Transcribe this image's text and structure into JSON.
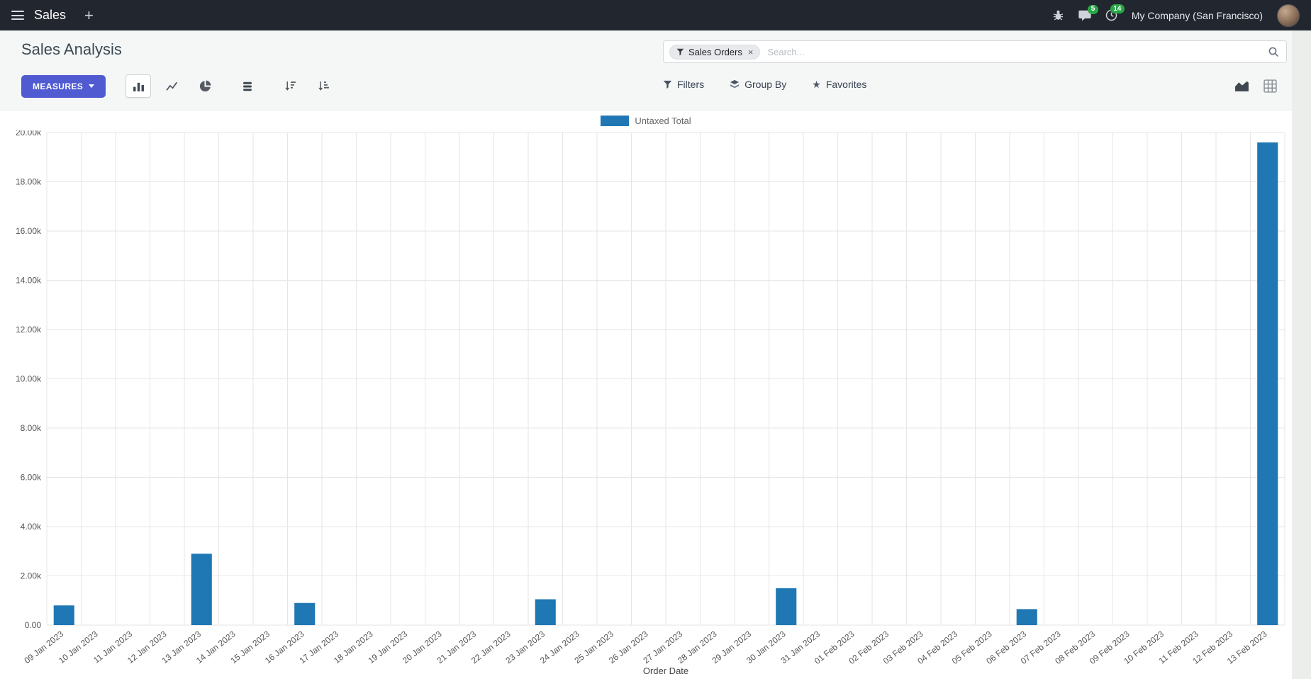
{
  "colors": {
    "navbar_bg": "#22262e",
    "accent": "#505bd2",
    "bar": "#1f77b4",
    "badge_green": "#28a745",
    "grid": "#e6e6e6",
    "tick_text": "#555555"
  },
  "navbar": {
    "app_name": "Sales",
    "plus_label": "+",
    "messages_badge": "5",
    "activities_badge": "14",
    "company": "My Company (San Francisco)"
  },
  "control_panel": {
    "title": "Sales Analysis",
    "search": {
      "facet": "Sales Orders",
      "facet_remove": "×",
      "placeholder": "Search..."
    },
    "measures_label": "MEASURES",
    "filters_label": "Filters",
    "group_by_label": "Group By",
    "favorites_label": "Favorites"
  },
  "chart_data": {
    "type": "bar",
    "title": "",
    "xlabel": "Order Date",
    "ylabel": "",
    "legend": [
      "Untaxed Total"
    ],
    "legend_position": "top",
    "grid": true,
    "ylim": [
      0,
      20000
    ],
    "y_ticks": [
      "0.00",
      "2.00k",
      "4.00k",
      "6.00k",
      "8.00k",
      "10.00k",
      "12.00k",
      "14.00k",
      "16.00k",
      "18.00k",
      "20.00k"
    ],
    "categories": [
      "09 Jan 2023",
      "10 Jan 2023",
      "11 Jan 2023",
      "12 Jan 2023",
      "13 Jan 2023",
      "14 Jan 2023",
      "15 Jan 2023",
      "16 Jan 2023",
      "17 Jan 2023",
      "18 Jan 2023",
      "19 Jan 2023",
      "20 Jan 2023",
      "21 Jan 2023",
      "22 Jan 2023",
      "23 Jan 2023",
      "24 Jan 2023",
      "25 Jan 2023",
      "26 Jan 2023",
      "27 Jan 2023",
      "28 Jan 2023",
      "29 Jan 2023",
      "30 Jan 2023",
      "31 Jan 2023",
      "01 Feb 2023",
      "02 Feb 2023",
      "03 Feb 2023",
      "04 Feb 2023",
      "05 Feb 2023",
      "06 Feb 2023",
      "07 Feb 2023",
      "08 Feb 2023",
      "09 Feb 2023",
      "10 Feb 2023",
      "11 Feb 2023",
      "12 Feb 2023",
      "13 Feb 2023"
    ],
    "series": [
      {
        "name": "Untaxed Total",
        "values": [
          800,
          0,
          0,
          0,
          2900,
          0,
          0,
          900,
          0,
          0,
          0,
          0,
          0,
          0,
          1050,
          0,
          0,
          0,
          0,
          0,
          0,
          1500,
          0,
          0,
          0,
          0,
          0,
          0,
          650,
          0,
          0,
          0,
          0,
          0,
          0,
          19600
        ]
      }
    ]
  }
}
